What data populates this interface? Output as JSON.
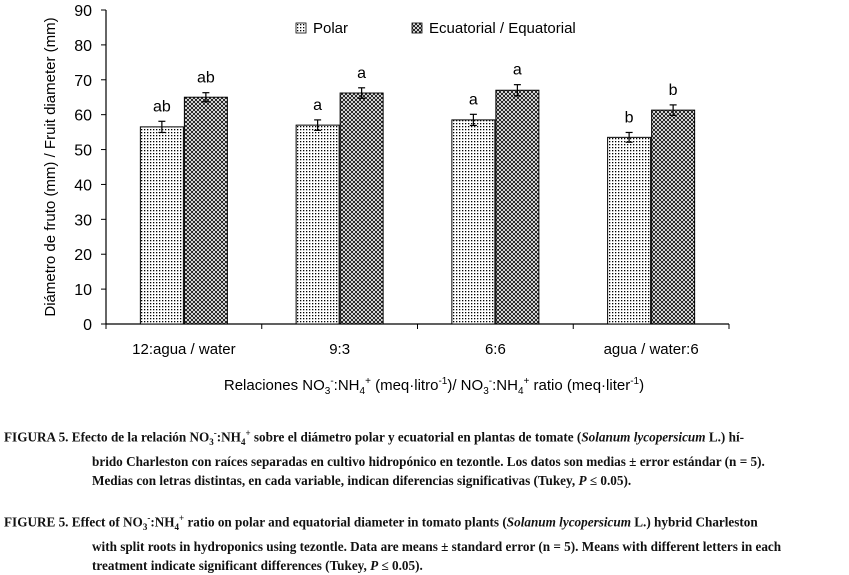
{
  "chart_data": {
    "type": "bar",
    "ylabel": "Diámetro de fruto (mm) / Fruit diameter (mm)",
    "xlabel_parts": [
      "Relaciones NO",
      "3",
      "-",
      ":NH",
      "4",
      "+",
      " (meq·litro",
      "-1",
      ")/ NO",
      "3",
      "-",
      ":NH",
      "4",
      "+",
      " ratio (meq·liter",
      "-1",
      ")"
    ],
    "ylim": [
      0,
      90
    ],
    "yticks": [
      0,
      10,
      20,
      30,
      40,
      50,
      60,
      70,
      80,
      90
    ],
    "categories": [
      "12:agua / water",
      "9:3",
      "6:6",
      "agua / water:6"
    ],
    "series": [
      {
        "name": "Polar",
        "pattern": "dots",
        "values": [
          56.5,
          57.0,
          58.5,
          53.5
        ],
        "errors": [
          1.6,
          1.5,
          1.6,
          1.4
        ],
        "letters": [
          "ab",
          "a",
          "a",
          "b"
        ]
      },
      {
        "name": "Ecuatorial / Equatorial",
        "pattern": "crosshatch",
        "values": [
          65.0,
          66.2,
          67.0,
          61.3
        ],
        "errors": [
          1.3,
          1.5,
          1.6,
          1.5
        ],
        "letters": [
          "ab",
          "a",
          "a",
          "b"
        ]
      }
    ],
    "grid": false,
    "legend_position": "top-center",
    "colors": {
      "bar_fill": "#ffffff",
      "bar_stroke": "#000000",
      "pattern_ink": "#000000"
    }
  },
  "caption_es": {
    "lines": [
      [
        {
          "t": "FIGURA 5. Efecto de la relación NO"
        },
        {
          "t": "3",
          "s": "sub"
        },
        {
          "t": "-",
          "s": "sup"
        },
        {
          "t": ":NH"
        },
        {
          "t": "4",
          "s": "sub"
        },
        {
          "t": "+",
          "s": "sup"
        },
        {
          "t": " sobre el diámetro polar y ecuatorial en plantas de tomate ("
        },
        {
          "t": "Solanum lycopersicum",
          "s": "i"
        },
        {
          "t": " L.) hí-"
        }
      ],
      [
        {
          "t": "brido Charleston con raíces separadas en cultivo hidropónico en tezontle. Los datos son medias ± error estándar (n = 5)."
        }
      ],
      [
        {
          "t": "Medias con letras distintas, en cada variable, indican diferencias significativas (Tukey, "
        },
        {
          "t": "P",
          "s": "i"
        },
        {
          "t": " ≤ 0.05)."
        }
      ]
    ]
  },
  "caption_en": {
    "lines": [
      [
        {
          "t": "FIGURE 5. Effect of NO"
        },
        {
          "t": "3",
          "s": "sub"
        },
        {
          "t": "-",
          "s": "sup"
        },
        {
          "t": ":NH"
        },
        {
          "t": "4",
          "s": "sub"
        },
        {
          "t": "+",
          "s": "sup"
        },
        {
          "t": " ratio on polar and equatorial diameter in tomato plants ("
        },
        {
          "t": "Solanum lycopersicum",
          "s": "i"
        },
        {
          "t": " L.) hybrid Charleston"
        }
      ],
      [
        {
          "t": "with split roots in hydroponics using tezontle. Data are means ± standard error (n = 5). Means with different letters in each"
        }
      ],
      [
        {
          "t": "treatment indicate significant differences (Tukey, "
        },
        {
          "t": "P",
          "s": "i"
        },
        {
          "t": " ≤ 0.05)."
        }
      ]
    ]
  }
}
